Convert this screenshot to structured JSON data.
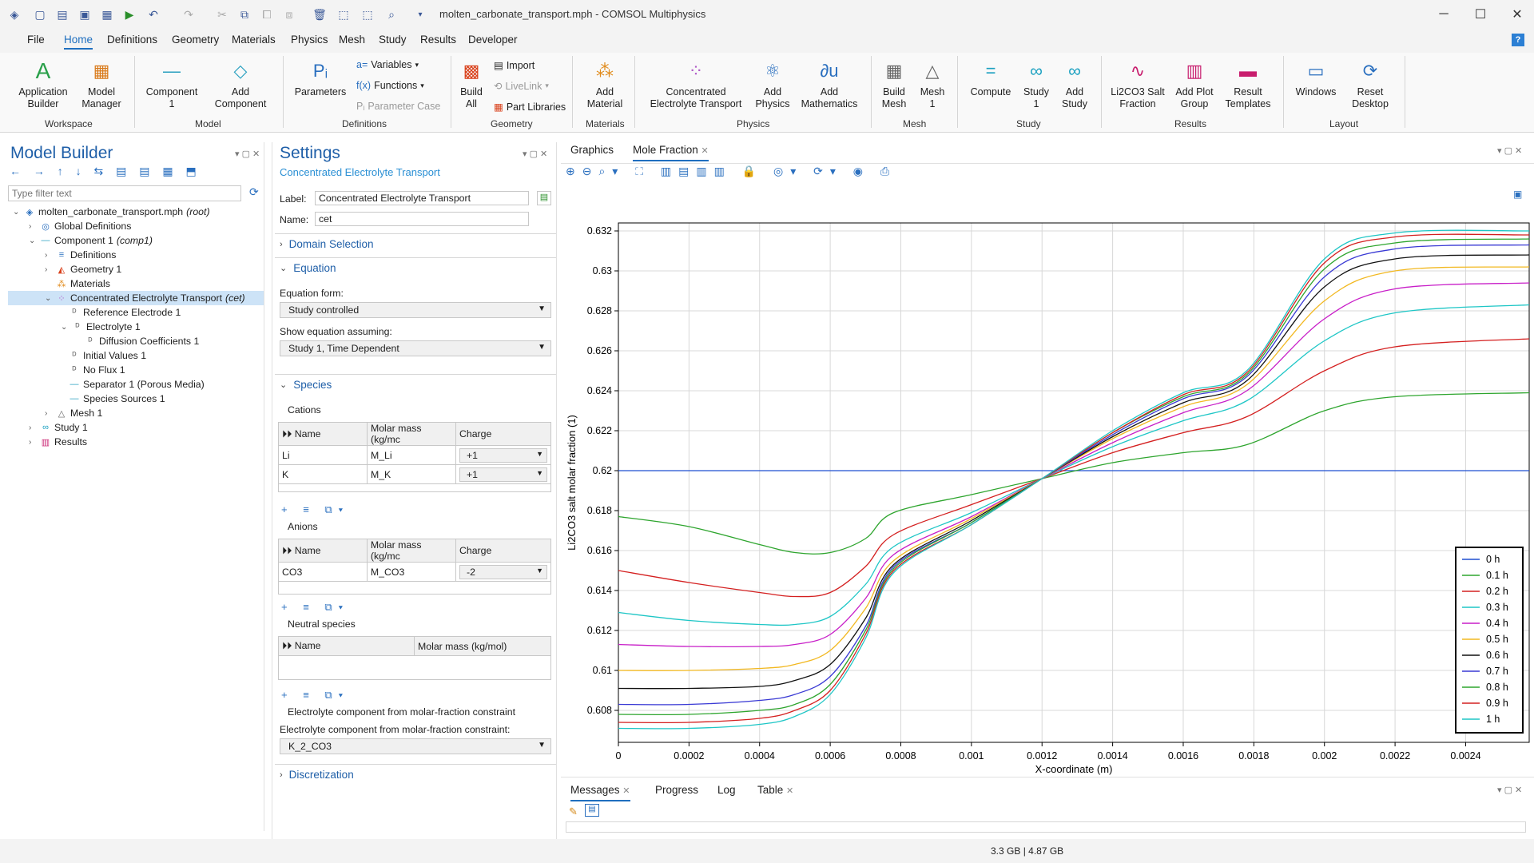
{
  "window": {
    "title": "molten_carbonate_transport.mph - COMSOL Multiphysics"
  },
  "menu": {
    "items": [
      "File",
      "Home",
      "Definitions",
      "Geometry",
      "Materials",
      "Physics",
      "Mesh",
      "Study",
      "Results",
      "Developer"
    ],
    "help": "?"
  },
  "ribbon": {
    "buttons": {
      "app_builder": "Application\nBuilder",
      "model_manager": "Model\nManager",
      "component": "Component\n1",
      "add_component": "Add\nComponent",
      "parameters": "Parameters",
      "build_all": "Build\nAll",
      "add_material": "Add\nMaterial",
      "cet": "Concentrated\nElectrolyte Transport",
      "add_physics": "Add\nPhysics",
      "add_math": "Add\nMathematics",
      "build_mesh": "Build\nMesh",
      "mesh1": "Mesh\n1",
      "compute": "Compute",
      "study1": "Study\n1",
      "add_study": "Add\nStudy",
      "li2co3": "Li2CO3 Salt\nFraction",
      "add_plot_group": "Add Plot\nGroup",
      "result_templates": "Result\nTemplates",
      "windows": "Windows",
      "reset_desktop": "Reset\nDesktop"
    },
    "small": {
      "variables": "Variables",
      "functions": "Functions",
      "param_case": "Parameter Case",
      "import": "Import",
      "livelink": "LiveLink",
      "part_libs": "Part Libraries"
    },
    "groups": [
      "Workspace",
      "Model",
      "Definitions",
      "Geometry",
      "Materials",
      "Physics",
      "Mesh",
      "Study",
      "Results",
      "Layout"
    ]
  },
  "model_builder": {
    "title": "Model Builder",
    "filter_placeholder": "Type filter text",
    "tree": [
      {
        "label": "molten_carbonate_transport.mph",
        "tag": "(root)"
      },
      {
        "label": "Global Definitions",
        "tag": ""
      },
      {
        "label": "Component 1",
        "tag": "(comp1)"
      },
      {
        "label": "Definitions",
        "tag": ""
      },
      {
        "label": "Geometry 1",
        "tag": ""
      },
      {
        "label": "Materials",
        "tag": ""
      },
      {
        "label": "Concentrated Electrolyte Transport",
        "tag": "(cet)"
      },
      {
        "label": "Reference Electrode 1",
        "tag": ""
      },
      {
        "label": "Electrolyte 1",
        "tag": ""
      },
      {
        "label": "Diffusion Coefficients 1",
        "tag": ""
      },
      {
        "label": "Initial Values 1",
        "tag": ""
      },
      {
        "label": "No Flux 1",
        "tag": ""
      },
      {
        "label": "Separator 1 (Porous Media)",
        "tag": ""
      },
      {
        "label": "Species Sources 1",
        "tag": ""
      },
      {
        "label": "Mesh 1",
        "tag": ""
      },
      {
        "label": "Study 1",
        "tag": ""
      },
      {
        "label": "Results",
        "tag": ""
      }
    ]
  },
  "settings": {
    "title": "Settings",
    "subtitle": "Concentrated Electrolyte Transport",
    "label_lbl": "Label:",
    "label_val": "Concentrated Electrolyte Transport",
    "name_lbl": "Name:",
    "name_val": "cet",
    "sections": {
      "domain": "Domain Selection",
      "equation": "Equation",
      "species": "Species",
      "discretization": "Discretization"
    },
    "eq_form_lbl": "Equation form:",
    "eq_form_val": "Study controlled",
    "show_eq_lbl": "Show equation assuming:",
    "show_eq_val": "Study 1, Time Dependent",
    "cations_lbl": "Cations",
    "anions_lbl": "Anions",
    "neutral_lbl": "Neutral species",
    "col_name": "Name",
    "col_molar": "Molar mass (kg/mc",
    "col_charge": "Charge",
    "col_molar_full": "Molar mass (kg/mol)",
    "cations": [
      {
        "name": "Li",
        "mass": "M_Li",
        "charge": "+1"
      },
      {
        "name": "K",
        "mass": "M_K",
        "charge": "+1"
      }
    ],
    "anions": [
      {
        "name": "CO3",
        "mass": "M_CO3",
        "charge": "-2"
      }
    ],
    "elec_comp_lbl1": "Electrolyte component from molar-fraction constraint",
    "elec_comp_lbl2": "Electrolyte component from molar-fraction constraint:",
    "elec_comp_val": "K_2_CO3"
  },
  "graphics": {
    "tabs": [
      "Graphics",
      "Mole Fraction"
    ],
    "bottom_tabs": [
      "Messages",
      "Progress",
      "Log",
      "Table"
    ]
  },
  "status": {
    "memory": "3.3 GB | 4.87 GB"
  },
  "chart_data": {
    "type": "line",
    "xlabel": "X-coordinate (m)",
    "ylabel": "Li2CO3 salt molar fraction (1)",
    "xlim": [
      0,
      0.00258
    ],
    "ylim": [
      0.6064,
      0.6324
    ],
    "xticks": [
      "0",
      "0.0002",
      "0.0004",
      "0.0006",
      "0.0008",
      "0.001",
      "0.0012",
      "0.0014",
      "0.0016",
      "0.0018",
      "0.002",
      "0.0022",
      "0.0024"
    ],
    "xtick_values": [
      0,
      0.0002,
      0.0004,
      0.0006,
      0.0008,
      0.001,
      0.0012,
      0.0014,
      0.0016,
      0.0018,
      0.002,
      0.0022,
      0.0024
    ],
    "yticks": [
      "0.608",
      "0.61",
      "0.612",
      "0.614",
      "0.616",
      "0.618",
      "0.62",
      "0.622",
      "0.624",
      "0.626",
      "0.628",
      "0.63",
      "0.632"
    ],
    "ytick_values": [
      0.608,
      0.61,
      0.612,
      0.614,
      0.616,
      0.618,
      0.62,
      0.622,
      0.624,
      0.626,
      0.628,
      0.63,
      0.632
    ],
    "grid": true,
    "legend_position": "bottom-right",
    "x": [
      0,
      0.0002,
      0.0004,
      0.0005,
      0.0006,
      0.0007,
      0.00078,
      0.001,
      0.0012,
      0.0014,
      0.0016,
      0.00178,
      0.002,
      0.0022,
      0.00258
    ],
    "series": [
      {
        "name": "0 h",
        "color": "#1f4fd1",
        "values": [
          0.62,
          0.62,
          0.62,
          0.62,
          0.62,
          0.62,
          0.62,
          0.62,
          0.62,
          0.62,
          0.62,
          0.62,
          0.62,
          0.62,
          0.62
        ]
      },
      {
        "name": "0.1 h",
        "color": "#2ea52e",
        "values": [
          0.6177,
          0.6172,
          0.6163,
          0.6159,
          0.6159,
          0.6166,
          0.6179,
          0.6188,
          0.6196,
          0.6204,
          0.6209,
          0.6213,
          0.623,
          0.6237,
          0.6239
        ]
      },
      {
        "name": "0.2 h",
        "color": "#d42020",
        "values": [
          0.615,
          0.6144,
          0.6139,
          0.6137,
          0.6139,
          0.6152,
          0.6168,
          0.6183,
          0.6196,
          0.6209,
          0.6219,
          0.6227,
          0.625,
          0.6262,
          0.6266
        ]
      },
      {
        "name": "0.3 h",
        "color": "#1ec6c6",
        "values": [
          0.6129,
          0.6125,
          0.6123,
          0.6123,
          0.6127,
          0.6143,
          0.6162,
          0.6179,
          0.6196,
          0.6212,
          0.6225,
          0.6235,
          0.6265,
          0.6279,
          0.6283
        ]
      },
      {
        "name": "0.4 h",
        "color": "#c81ec8",
        "values": [
          0.6113,
          0.6112,
          0.6112,
          0.6113,
          0.6118,
          0.6136,
          0.6158,
          0.6177,
          0.6196,
          0.6214,
          0.6229,
          0.624,
          0.6276,
          0.6291,
          0.6294
        ]
      },
      {
        "name": "0.5 h",
        "color": "#f2b820",
        "values": [
          0.61,
          0.61,
          0.6101,
          0.6103,
          0.611,
          0.6131,
          0.6155,
          0.6176,
          0.6196,
          0.6216,
          0.6232,
          0.6243,
          0.6285,
          0.63,
          0.6302
        ]
      },
      {
        "name": "0.6 h",
        "color": "#111111",
        "values": [
          0.6091,
          0.6091,
          0.6092,
          0.6095,
          0.6103,
          0.6126,
          0.6153,
          0.6175,
          0.6196,
          0.6217,
          0.6234,
          0.6245,
          0.6292,
          0.6306,
          0.6308
        ]
      },
      {
        "name": "0.7 h",
        "color": "#3a3ad4",
        "values": [
          0.6083,
          0.6083,
          0.6085,
          0.6088,
          0.6097,
          0.6122,
          0.6152,
          0.6174,
          0.6196,
          0.6218,
          0.6236,
          0.6247,
          0.6297,
          0.6311,
          0.6313
        ]
      },
      {
        "name": "0.8 h",
        "color": "#2ea52e",
        "values": [
          0.6078,
          0.6078,
          0.608,
          0.6083,
          0.6093,
          0.612,
          0.6151,
          0.6174,
          0.6196,
          0.6219,
          0.6237,
          0.6248,
          0.6301,
          0.6314,
          0.6316
        ]
      },
      {
        "name": "0.9 h",
        "color": "#d42020",
        "values": [
          0.6074,
          0.6074,
          0.6076,
          0.608,
          0.609,
          0.6118,
          0.615,
          0.6173,
          0.6196,
          0.6219,
          0.6238,
          0.6249,
          0.6304,
          0.6317,
          0.6318
        ]
      },
      {
        "name": "1 h",
        "color": "#1ec6c6",
        "values": [
          0.6071,
          0.6071,
          0.6073,
          0.6077,
          0.6088,
          0.6116,
          0.6149,
          0.6173,
          0.6196,
          0.622,
          0.6239,
          0.625,
          0.6306,
          0.6319,
          0.632
        ]
      }
    ]
  }
}
